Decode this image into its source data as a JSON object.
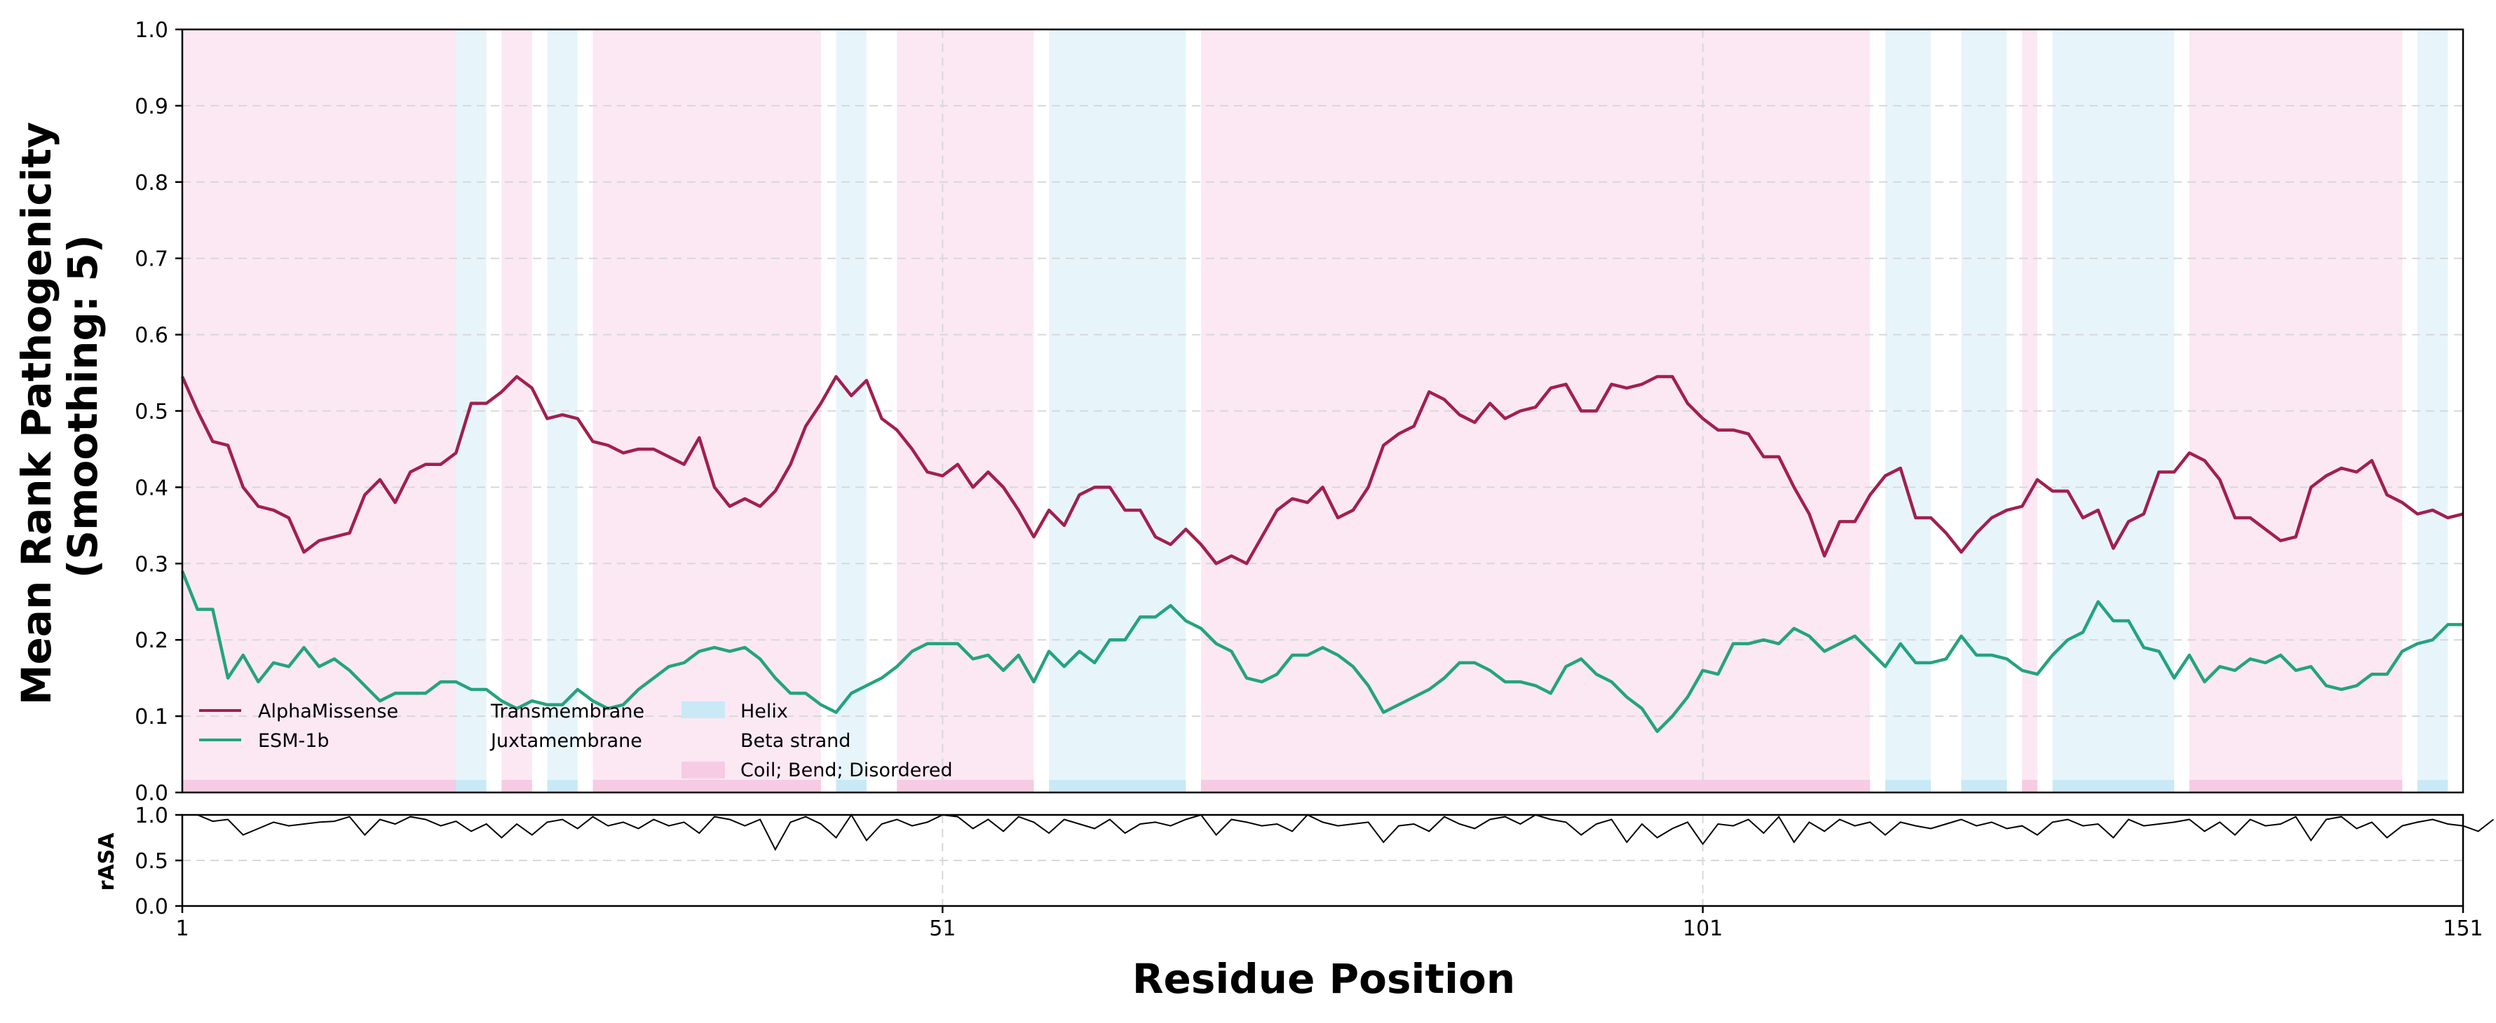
{
  "chart_data": {
    "type": "line",
    "ylabel": "Mean Rank Pathogenicity\n(Smoothing: 5)",
    "xlabel": "Residue Position",
    "xlim": [
      1,
      151
    ],
    "ylim": [
      0,
      1
    ],
    "yticks": [
      "0.0",
      "0.1",
      "0.2",
      "0.3",
      "0.4",
      "0.5",
      "0.6",
      "0.7",
      "0.8",
      "0.9",
      "1.0"
    ],
    "xticks": [
      "1",
      "51",
      "101",
      "151"
    ],
    "grid": true,
    "legend_position": "lower-left",
    "colors": {
      "alphamissense": "#a21f4f",
      "esm1b": "#24a37f",
      "helix": "#c9e9f6",
      "coil": "#f6cbe4",
      "rasa": "#000000"
    },
    "legend": {
      "series": [
        "AlphaMissense",
        "ESM-1b"
      ],
      "features": [
        "Transmembrane",
        "Juxtamembrane"
      ],
      "structure": [
        "Helix",
        "Beta strand",
        "Coil; Bend; Disordered"
      ]
    },
    "regions": [
      {
        "start": 1,
        "end": 19,
        "type": "coil"
      },
      {
        "start": 19,
        "end": 21,
        "type": "helix"
      },
      {
        "start": 22,
        "end": 24,
        "type": "coil"
      },
      {
        "start": 25,
        "end": 27,
        "type": "helix"
      },
      {
        "start": 28,
        "end": 43,
        "type": "coil"
      },
      {
        "start": 44,
        "end": 46,
        "type": "helix"
      },
      {
        "start": 48,
        "end": 57,
        "type": "coil"
      },
      {
        "start": 58,
        "end": 67,
        "type": "helix"
      },
      {
        "start": 68,
        "end": 112,
        "type": "coil"
      },
      {
        "start": 113,
        "end": 116,
        "type": "helix"
      },
      {
        "start": 118,
        "end": 121,
        "type": "helix"
      },
      {
        "start": 122,
        "end": 123,
        "type": "coil"
      },
      {
        "start": 124,
        "end": 132,
        "type": "helix"
      },
      {
        "start": 133,
        "end": 147,
        "type": "coil"
      },
      {
        "start": 148,
        "end": 150,
        "type": "helix"
      }
    ],
    "series": [
      {
        "name": "AlphaMissense",
        "values": [
          0.545,
          0.5,
          0.46,
          0.455,
          0.4,
          0.375,
          0.37,
          0.36,
          0.315,
          0.33,
          0.335,
          0.34,
          0.39,
          0.41,
          0.38,
          0.42,
          0.43,
          0.43,
          0.445,
          0.51,
          0.51,
          0.525,
          0.545,
          0.53,
          0.49,
          0.495,
          0.49,
          0.46,
          0.455,
          0.445,
          0.45,
          0.45,
          0.44,
          0.43,
          0.465,
          0.4,
          0.375,
          0.385,
          0.375,
          0.395,
          0.43,
          0.48,
          0.51,
          0.545,
          0.52,
          0.54,
          0.49,
          0.475,
          0.45,
          0.42,
          0.415,
          0.43,
          0.4,
          0.42,
          0.4,
          0.37,
          0.335,
          0.37,
          0.35,
          0.39,
          0.4,
          0.4,
          0.37,
          0.37,
          0.335,
          0.325,
          0.345,
          0.325,
          0.3,
          0.31,
          0.3,
          0.335,
          0.37,
          0.385,
          0.38,
          0.4,
          0.36,
          0.37,
          0.4,
          0.455,
          0.47,
          0.48,
          0.525,
          0.515,
          0.495,
          0.485,
          0.51,
          0.49,
          0.5,
          0.505,
          0.53,
          0.535,
          0.5,
          0.5,
          0.535,
          0.53,
          0.535,
          0.545,
          0.545,
          0.51,
          0.49,
          0.475,
          0.475,
          0.47,
          0.44,
          0.44,
          0.4,
          0.365,
          0.31,
          0.355,
          0.355,
          0.39,
          0.415,
          0.425,
          0.36,
          0.36,
          0.34,
          0.315,
          0.34,
          0.36,
          0.37,
          0.375,
          0.41,
          0.395,
          0.395,
          0.36,
          0.37,
          0.32,
          0.355,
          0.365,
          0.42,
          0.42,
          0.445,
          0.435,
          0.41,
          0.36,
          0.36,
          0.345,
          0.33,
          0.335,
          0.4,
          0.415,
          0.425,
          0.42,
          0.435,
          0.39,
          0.38,
          0.365,
          0.37,
          0.36,
          0.365
        ]
      },
      {
        "name": "ESM-1b",
        "values": [
          0.29,
          0.24,
          0.24,
          0.15,
          0.18,
          0.145,
          0.17,
          0.165,
          0.19,
          0.165,
          0.175,
          0.16,
          0.14,
          0.12,
          0.13,
          0.13,
          0.13,
          0.145,
          0.145,
          0.135,
          0.135,
          0.12,
          0.11,
          0.12,
          0.115,
          0.115,
          0.135,
          0.12,
          0.11,
          0.115,
          0.135,
          0.15,
          0.165,
          0.17,
          0.185,
          0.19,
          0.185,
          0.19,
          0.175,
          0.15,
          0.13,
          0.13,
          0.115,
          0.105,
          0.13,
          0.14,
          0.15,
          0.165,
          0.185,
          0.195,
          0.195,
          0.195,
          0.175,
          0.18,
          0.16,
          0.18,
          0.145,
          0.185,
          0.165,
          0.185,
          0.17,
          0.2,
          0.2,
          0.23,
          0.23,
          0.245,
          0.225,
          0.215,
          0.195,
          0.185,
          0.15,
          0.145,
          0.155,
          0.18,
          0.18,
          0.19,
          0.18,
          0.165,
          0.14,
          0.105,
          0.115,
          0.125,
          0.135,
          0.15,
          0.17,
          0.17,
          0.16,
          0.145,
          0.145,
          0.14,
          0.13,
          0.165,
          0.175,
          0.155,
          0.145,
          0.125,
          0.11,
          0.08,
          0.1,
          0.125,
          0.16,
          0.155,
          0.195,
          0.195,
          0.2,
          0.195,
          0.215,
          0.205,
          0.185,
          0.195,
          0.205,
          0.185,
          0.165,
          0.195,
          0.17,
          0.17,
          0.175,
          0.205,
          0.18,
          0.18,
          0.175,
          0.16,
          0.155,
          0.18,
          0.2,
          0.21,
          0.25,
          0.225,
          0.225,
          0.19,
          0.185,
          0.15,
          0.18,
          0.145,
          0.165,
          0.16,
          0.175,
          0.17,
          0.18,
          0.16,
          0.165,
          0.14,
          0.135,
          0.14,
          0.155,
          0.155,
          0.185,
          0.195,
          0.2,
          0.22,
          0.22
        ]
      }
    ],
    "rasa": {
      "ylabel": "rASA",
      "ylim": [
        0,
        1
      ],
      "yticks": [
        "0.0",
        "0.5",
        "1.0"
      ],
      "values": [
        1,
        1,
        0.93,
        0.95,
        0.78,
        0.85,
        0.92,
        0.88,
        0.9,
        0.92,
        0.93,
        0.98,
        0.78,
        0.95,
        0.9,
        0.98,
        0.95,
        0.88,
        0.93,
        0.82,
        0.9,
        0.75,
        0.9,
        0.78,
        0.92,
        0.95,
        0.85,
        0.98,
        0.88,
        0.92,
        0.85,
        0.95,
        0.88,
        0.92,
        0.8,
        0.98,
        0.95,
        0.88,
        0.95,
        0.62,
        0.92,
        0.98,
        0.9,
        0.75,
        1,
        0.72,
        0.9,
        0.95,
        0.88,
        0.92,
        1,
        0.98,
        0.85,
        0.95,
        0.82,
        0.98,
        0.92,
        0.8,
        0.95,
        0.9,
        0.85,
        0.95,
        0.8,
        0.9,
        0.92,
        0.88,
        0.95,
        1,
        0.78,
        0.95,
        0.92,
        0.88,
        0.9,
        0.82,
        1,
        0.92,
        0.88,
        0.9,
        0.92,
        0.7,
        0.88,
        0.9,
        0.82,
        0.98,
        0.9,
        0.85,
        0.95,
        0.98,
        0.9,
        1,
        0.95,
        0.92,
        0.78,
        0.9,
        0.95,
        0.7,
        0.9,
        0.75,
        0.85,
        0.92,
        0.68,
        0.9,
        0.88,
        0.95,
        0.8,
        0.98,
        0.7,
        0.92,
        0.82,
        0.95,
        0.88,
        0.92,
        0.78,
        0.92,
        0.88,
        0.85,
        0.9,
        0.95,
        0.88,
        0.92,
        0.85,
        0.88,
        0.78,
        0.92,
        0.95,
        0.88,
        0.9,
        0.75,
        0.95,
        0.88,
        0.9,
        0.92,
        0.95,
        0.82,
        0.92,
        0.78,
        0.95,
        0.88,
        0.9,
        0.98,
        0.72,
        0.95,
        0.98,
        0.85,
        0.92,
        0.75,
        0.88,
        0.92,
        0.95,
        0.9,
        0.88,
        0.82,
        0.95
      ]
    }
  }
}
